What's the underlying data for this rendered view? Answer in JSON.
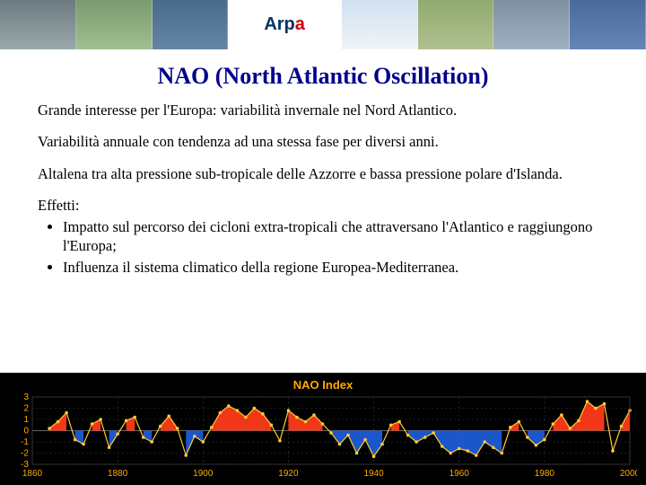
{
  "header": {
    "logo_text_left": "Arp",
    "logo_text_red": "a"
  },
  "title": "NAO (North Atlantic Oscillation)",
  "paragraphs": {
    "p1": "Grande interesse per l'Europa: variabilità invernale nel Nord Atlantico.",
    "p2": "Variabilità annuale con tendenza ad una stessa fase per diversi anni.",
    "p3": "Altalena tra alta pressione sub-tropicale delle Azzorre e bassa pressione polare d'Islanda.",
    "effects_label": "Effetti:",
    "bullet1": "Impatto sul percorso dei cicloni extra-tropicali che attraversano l'Atlantico e raggiungono l'Europa;",
    "bullet2": "Influenza il sistema climatico della regione Europea-Mediterranea."
  },
  "chart": {
    "title": "NAO Index",
    "title_color": "#ffaa00",
    "background": "#000000",
    "grid_color": "#444444",
    "zero_line_color": "#666666",
    "positive_fill": "#ff3a1a",
    "negative_fill": "#1e5bd6",
    "line_color": "#ffcc33",
    "marker_color": "#ffcc33",
    "axis_label_color": "#ffaa00",
    "xstart": 1860,
    "xend": 2000,
    "xtick_step": 20,
    "ylim": [
      -3,
      3
    ],
    "ytick_step": 1,
    "label_fontsize": 10,
    "years": [
      1864,
      1866,
      1868,
      1870,
      1872,
      1874,
      1876,
      1878,
      1880,
      1882,
      1884,
      1886,
      1888,
      1890,
      1892,
      1894,
      1896,
      1898,
      1900,
      1902,
      1904,
      1906,
      1908,
      1910,
      1912,
      1914,
      1916,
      1918,
      1920,
      1922,
      1924,
      1926,
      1928,
      1930,
      1932,
      1934,
      1936,
      1938,
      1940,
      1942,
      1944,
      1946,
      1948,
      1950,
      1952,
      1954,
      1956,
      1958,
      1960,
      1962,
      1964,
      1966,
      1968,
      1970,
      1972,
      1974,
      1976,
      1978,
      1980,
      1982,
      1984,
      1986,
      1988,
      1990,
      1992,
      1994,
      1996,
      1998,
      2000
    ],
    "values": [
      0.2,
      0.8,
      1.6,
      -0.8,
      -1.2,
      0.6,
      1.0,
      -1.5,
      -0.3,
      0.9,
      1.2,
      -0.6,
      -1.0,
      0.4,
      1.3,
      0.2,
      -2.2,
      -0.5,
      -1.0,
      0.3,
      1.6,
      2.2,
      1.8,
      1.2,
      2.0,
      1.5,
      0.5,
      -0.9,
      1.8,
      1.2,
      0.8,
      1.4,
      0.6,
      -0.2,
      -1.2,
      -0.4,
      -2.0,
      -0.8,
      -2.3,
      -1.2,
      0.5,
      0.8,
      -0.4,
      -1.0,
      -0.6,
      -0.2,
      -1.4,
      -2.0,
      -1.6,
      -1.8,
      -2.2,
      -1.0,
      -1.5,
      -2.0,
      0.3,
      0.8,
      -0.6,
      -1.3,
      -0.8,
      0.6,
      1.4,
      0.2,
      0.9,
      2.6,
      2.0,
      2.4,
      -1.8,
      0.4,
      1.8
    ]
  }
}
